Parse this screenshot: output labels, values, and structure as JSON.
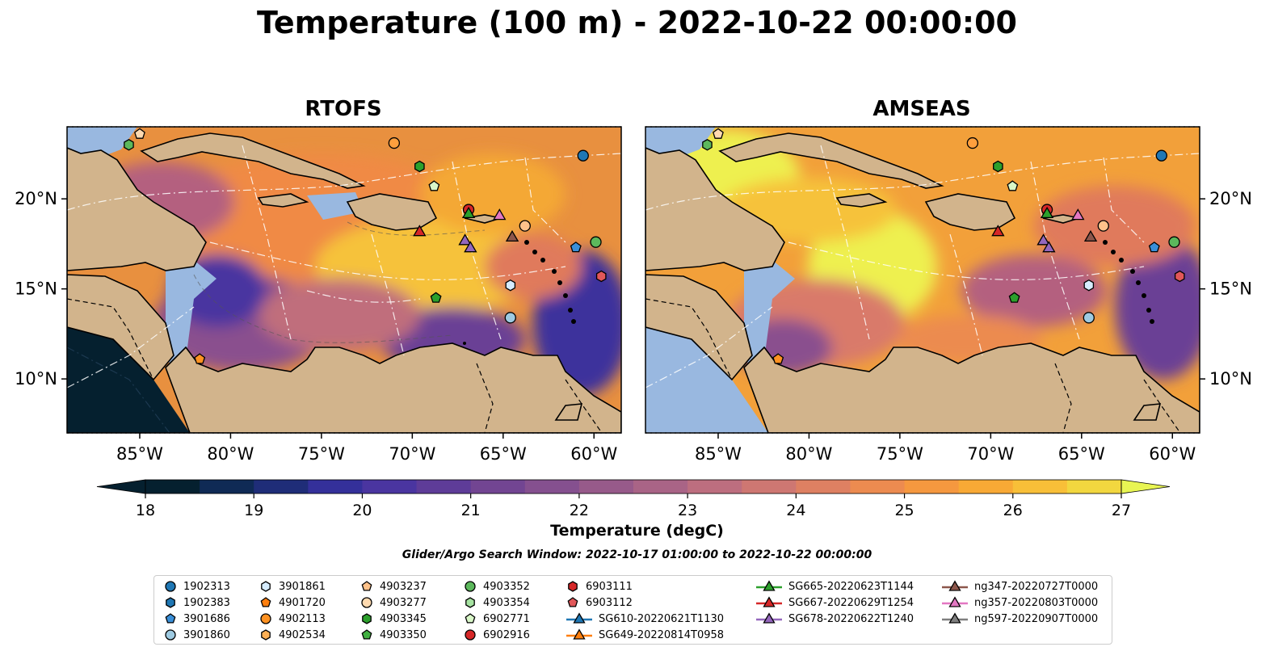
{
  "title": "Temperature (100 m) - 2022-10-22 00:00:00",
  "colors": {
    "land": "#d2b48c",
    "shallow_water": "#99b8e0",
    "colormap": [
      "#05202f",
      "#0f2a55",
      "#1f2d78",
      "#34309a",
      "#4a35a0",
      "#5e3c98",
      "#724592",
      "#85508f",
      "#975a8a",
      "#a96486",
      "#bd6e7f",
      "#ce7772",
      "#de8062",
      "#ec8b50",
      "#f5983f",
      "#f8a935",
      "#f8bf38",
      "#f2d73f",
      "#e8f553"
    ]
  },
  "chart_data": [
    {
      "type": "heatmap",
      "title": "RTOFS",
      "x_ticks": [
        "85°W",
        "80°W",
        "75°W",
        "70°W",
        "65°W",
        "60°W"
      ],
      "x_tick_values": [
        -85,
        -80,
        -75,
        -70,
        -65,
        -60
      ],
      "y_ticks": [
        "20°N",
        "15°N",
        "10°N"
      ],
      "y_tick_values": [
        20,
        15,
        10
      ],
      "xlim": [
        -89,
        -58.5
      ],
      "ylim": [
        7,
        24
      ],
      "colorbar_range": [
        18,
        27
      ]
    },
    {
      "type": "heatmap",
      "title": "AMSEAS",
      "x_ticks": [
        "85°W",
        "80°W",
        "75°W",
        "70°W",
        "65°W",
        "60°W"
      ],
      "x_tick_values": [
        -85,
        -80,
        -75,
        -70,
        -65,
        -60
      ],
      "y_ticks": [
        "20°N",
        "15°N",
        "10°N"
      ],
      "y_tick_values": [
        20,
        15,
        10
      ],
      "xlim": [
        -89,
        -58.5
      ],
      "ylim": [
        7,
        24
      ],
      "colorbar_range": [
        18,
        27
      ]
    }
  ],
  "colorbar": {
    "label": "Temperature (degC)",
    "ticks": [
      "18",
      "19",
      "20",
      "21",
      "22",
      "23",
      "24",
      "25",
      "26",
      "27"
    ],
    "tick_values": [
      18,
      19,
      20,
      21,
      22,
      23,
      24,
      25,
      26,
      27
    ],
    "min": 17.5,
    "max": 27.0
  },
  "search_window": "Glider/Argo Search Window: 2022-10-17 01:00:00 to 2022-10-22 00:00:00",
  "markers": [
    {
      "lon": -60.6,
      "lat": 22.4,
      "color": "#1f77b4",
      "shape": "circle"
    },
    {
      "lon": -71.0,
      "lat": 23.1,
      "color": "#ff9f3d",
      "shape": "circle"
    },
    {
      "lon": -69.6,
      "lat": 21.8,
      "color": "#2ca02c",
      "shape": "hexagon"
    },
    {
      "lon": -68.8,
      "lat": 20.7,
      "color": "#d9f7c8",
      "shape": "pentagon"
    },
    {
      "lon": -85.6,
      "lat": 23.0,
      "color": "#5cb85c",
      "shape": "hexagon"
    },
    {
      "lon": -85.0,
      "lat": 23.6,
      "color": "#ffdab0",
      "shape": "pentagon"
    },
    {
      "lon": -66.9,
      "lat": 19.4,
      "color": "#d62728",
      "shape": "circle"
    },
    {
      "lon": -66.9,
      "lat": 19.2,
      "color": "#2ca02c",
      "shape": "triangle"
    },
    {
      "lon": -65.2,
      "lat": 19.1,
      "color": "#e377c2",
      "shape": "triangle"
    },
    {
      "lon": -63.8,
      "lat": 18.5,
      "color": "#ffc28a",
      "shape": "circle"
    },
    {
      "lon": -69.6,
      "lat": 18.2,
      "color": "#d62728",
      "shape": "triangle"
    },
    {
      "lon": -67.1,
      "lat": 17.7,
      "color": "#9467bd",
      "shape": "triangle"
    },
    {
      "lon": -66.8,
      "lat": 17.3,
      "color": "#9467bd",
      "shape": "triangle"
    },
    {
      "lon": -64.5,
      "lat": 17.9,
      "color": "#8c564b",
      "shape": "triangle"
    },
    {
      "lon": -61.0,
      "lat": 17.3,
      "color": "#3a8fd8",
      "shape": "pentagon"
    },
    {
      "lon": -59.9,
      "lat": 17.6,
      "color": "#5cb85c",
      "shape": "circle"
    },
    {
      "lon": -59.6,
      "lat": 15.7,
      "color": "#e15759",
      "shape": "hexagon"
    },
    {
      "lon": -64.6,
      "lat": 15.2,
      "color": "#d6ecff",
      "shape": "hexagon"
    },
    {
      "lon": -68.7,
      "lat": 14.5,
      "color": "#2ca02c",
      "shape": "pentagon"
    },
    {
      "lon": -64.6,
      "lat": 13.4,
      "color": "#9ecae1",
      "shape": "circle"
    },
    {
      "lon": -81.7,
      "lat": 11.1,
      "color": "#ff9222",
      "shape": "pentagon"
    }
  ],
  "legend": {
    "columns": [
      [
        {
          "label": "1902313",
          "color": "#1f77b4",
          "shape": "circle",
          "line": false
        },
        {
          "label": "1902383",
          "color": "#1f77b4",
          "shape": "hexagon",
          "line": false
        },
        {
          "label": "3901686",
          "color": "#3a8fd8",
          "shape": "pentagon",
          "line": false
        },
        {
          "label": "3901860",
          "color": "#9ecae1",
          "shape": "circle",
          "line": false
        }
      ],
      [
        {
          "label": "3901861",
          "color": "#d6ecff",
          "shape": "hexagon",
          "line": false
        },
        {
          "label": "4901720",
          "color": "#ff7f0e",
          "shape": "pentagon",
          "line": false
        },
        {
          "label": "4902113",
          "color": "#ff9222",
          "shape": "circle",
          "line": false
        },
        {
          "label": "4902534",
          "color": "#ffb055",
          "shape": "hexagon",
          "line": false
        }
      ],
      [
        {
          "label": "4903237",
          "color": "#ffc28a",
          "shape": "pentagon",
          "line": false
        },
        {
          "label": "4903277",
          "color": "#ffdab0",
          "shape": "circle",
          "line": false
        },
        {
          "label": "4903345",
          "color": "#2ca02c",
          "shape": "hexagon",
          "line": false
        },
        {
          "label": "4903350",
          "color": "#41b041",
          "shape": "pentagon",
          "line": false
        }
      ],
      [
        {
          "label": "4903352",
          "color": "#5cb85c",
          "shape": "circle",
          "line": false
        },
        {
          "label": "4903354",
          "color": "#a6e3a1",
          "shape": "hexagon",
          "line": false
        },
        {
          "label": "6902771",
          "color": "#d9f7c8",
          "shape": "pentagon",
          "line": false
        },
        {
          "label": "6902916",
          "color": "#d62728",
          "shape": "circle",
          "line": false
        }
      ],
      [
        {
          "label": "6903111",
          "color": "#d62728",
          "shape": "hexagon",
          "line": false
        },
        {
          "label": "6903112",
          "color": "#e15759",
          "shape": "pentagon",
          "line": false
        },
        {
          "label": "SG610-20220621T1130",
          "color": "#1f77b4",
          "shape": "triangle",
          "line": true
        },
        {
          "label": "SG649-20220814T0958",
          "color": "#ff7f0e",
          "shape": "triangle",
          "line": true
        }
      ],
      [
        {
          "label": "SG665-20220623T1144",
          "color": "#2ca02c",
          "shape": "triangle",
          "line": true
        },
        {
          "label": "SG667-20220629T1254",
          "color": "#d62728",
          "shape": "triangle",
          "line": true
        },
        {
          "label": "SG678-20220622T1240",
          "color": "#9467bd",
          "shape": "triangle",
          "line": true
        }
      ],
      [
        {
          "label": "ng347-20220727T0000",
          "color": "#8c564b",
          "shape": "triangle",
          "line": true
        },
        {
          "label": "ng357-20220803T0000",
          "color": "#e377c2",
          "shape": "triangle",
          "line": true
        },
        {
          "label": "ng597-20220907T0000",
          "color": "#7f7f7f",
          "shape": "triangle",
          "line": true
        }
      ]
    ]
  }
}
